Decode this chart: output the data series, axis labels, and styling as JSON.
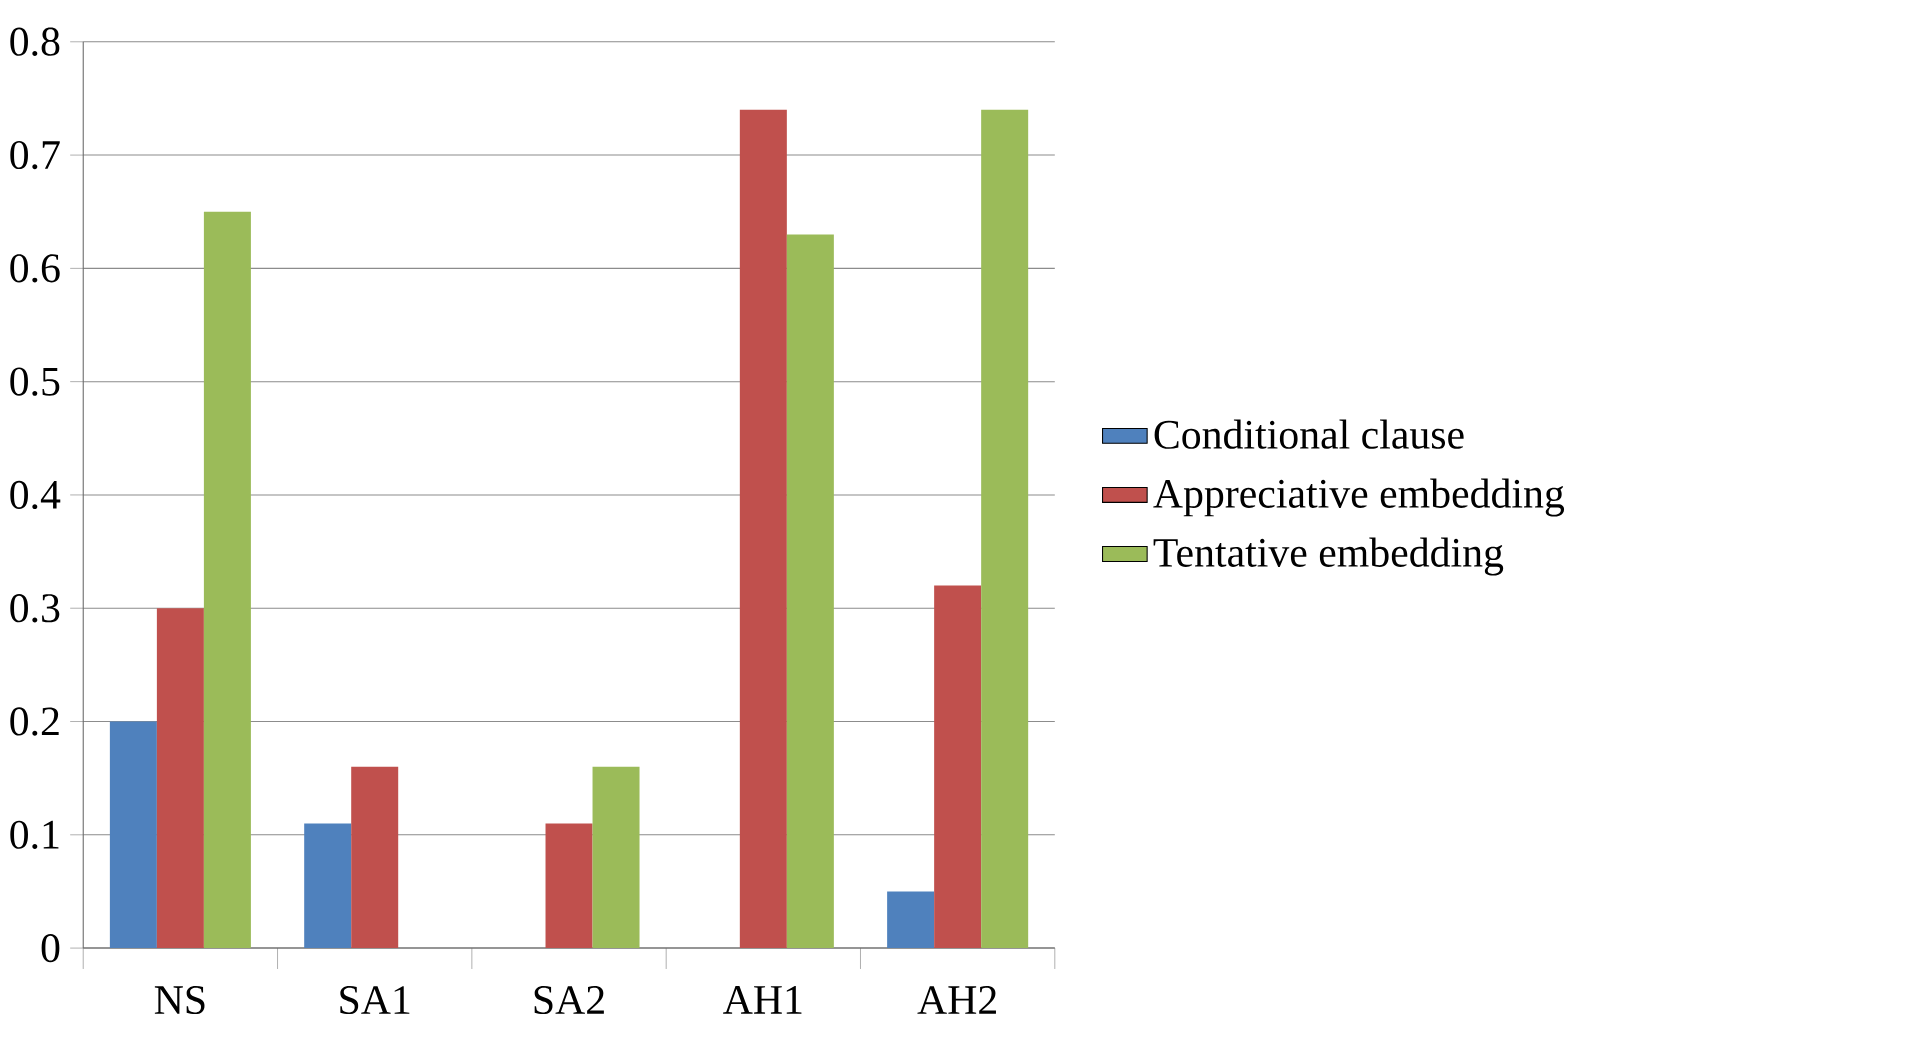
{
  "chart_data": {
    "type": "bar",
    "categories": [
      "NS",
      "SA1",
      "SA2",
      "AH1",
      "AH2"
    ],
    "series": [
      {
        "name": "Conditional clause",
        "color": "#4f81bd",
        "values": [
          0.2,
          0.11,
          0,
          0,
          0.05
        ]
      },
      {
        "name": "Appreciative embedding",
        "color": "#c0504d",
        "values": [
          0.3,
          0.16,
          0.11,
          0.74,
          0.32
        ]
      },
      {
        "name": "Tentative embedding",
        "color": "#9bbb59",
        "values": [
          0.65,
          0,
          0.16,
          0.63,
          0.74
        ]
      }
    ],
    "ylim": [
      0,
      0.8
    ],
    "yticks": [
      0,
      0.1,
      0.2,
      0.3,
      0.4,
      0.5,
      0.6,
      0.7,
      0.8
    ],
    "grid": "y",
    "legend": "right"
  }
}
